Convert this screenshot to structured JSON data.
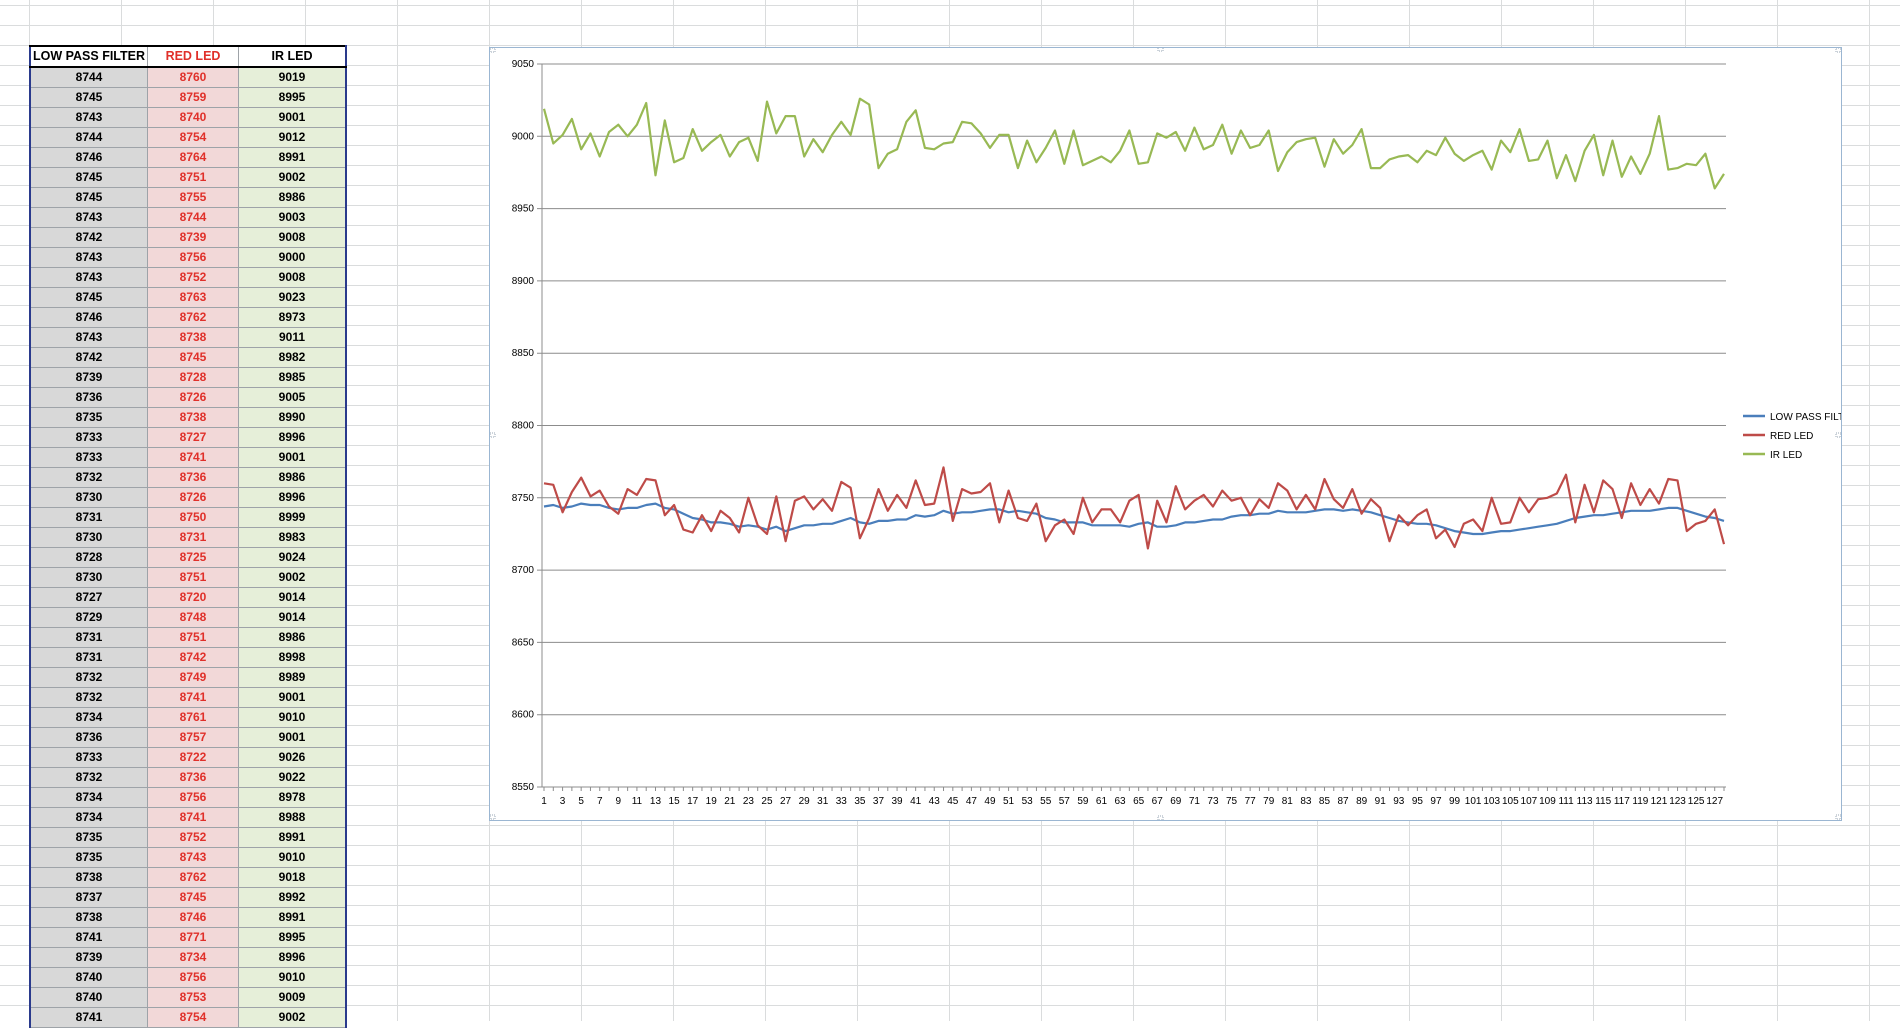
{
  "table": {
    "headers": [
      "LOW PASS FILTER",
      "RED LED",
      "IR LED"
    ],
    "header_colors": [
      "#000000",
      "#e0302a",
      "#000000"
    ],
    "rows": [
      [
        8744,
        8760,
        9019
      ],
      [
        8745,
        8759,
        8995
      ],
      [
        8743,
        8740,
        9001
      ],
      [
        8744,
        8754,
        9012
      ],
      [
        8746,
        8764,
        8991
      ],
      [
        8745,
        8751,
        9002
      ],
      [
        8745,
        8755,
        8986
      ],
      [
        8743,
        8744,
        9003
      ],
      [
        8742,
        8739,
        9008
      ],
      [
        8743,
        8756,
        9000
      ],
      [
        8743,
        8752,
        9008
      ],
      [
        8745,
        8763,
        9023
      ],
      [
        8746,
        8762,
        8973
      ],
      [
        8743,
        8738,
        9011
      ],
      [
        8742,
        8745,
        8982
      ],
      [
        8739,
        8728,
        8985
      ],
      [
        8736,
        8726,
        9005
      ],
      [
        8735,
        8738,
        8990
      ],
      [
        8733,
        8727,
        8996
      ],
      [
        8733,
        8741,
        9001
      ],
      [
        8732,
        8736,
        8986
      ],
      [
        8730,
        8726,
        8996
      ],
      [
        8731,
        8750,
        8999
      ],
      [
        8730,
        8731,
        8983
      ],
      [
        8728,
        8725,
        9024
      ],
      [
        8730,
        8751,
        9002
      ],
      [
        8727,
        8720,
        9014
      ],
      [
        8729,
        8748,
        9014
      ],
      [
        8731,
        8751,
        8986
      ],
      [
        8731,
        8742,
        8998
      ],
      [
        8732,
        8749,
        8989
      ],
      [
        8732,
        8741,
        9001
      ],
      [
        8734,
        8761,
        9010
      ],
      [
        8736,
        8757,
        9001
      ],
      [
        8733,
        8722,
        9026
      ],
      [
        8732,
        8736,
        9022
      ],
      [
        8734,
        8756,
        8978
      ],
      [
        8734,
        8741,
        8988
      ],
      [
        8735,
        8752,
        8991
      ],
      [
        8735,
        8743,
        9010
      ],
      [
        8738,
        8762,
        9018
      ],
      [
        8737,
        8745,
        8992
      ],
      [
        8738,
        8746,
        8991
      ],
      [
        8741,
        8771,
        8995
      ],
      [
        8739,
        8734,
        8996
      ],
      [
        8740,
        8756,
        9010
      ],
      [
        8740,
        8753,
        9009
      ],
      [
        8741,
        8754,
        9002
      ]
    ]
  },
  "colors": {
    "lpf": "#4a7ebb",
    "red": "#be4b48",
    "ir": "#98b954",
    "red_text": "#e0302a"
  },
  "chart_data": {
    "type": "line",
    "title": "",
    "xlabel": "",
    "ylabel": "",
    "ylim": [
      8550,
      9050
    ],
    "yticks": [
      8550,
      8600,
      8650,
      8700,
      8750,
      8800,
      8850,
      8900,
      8950,
      9000,
      9050
    ],
    "xticks": [
      "1",
      "3",
      "5",
      "7",
      "9",
      "11",
      "13",
      "15",
      "17",
      "19",
      "21",
      "23",
      "25",
      "27",
      "29",
      "31",
      "33",
      "35",
      "37",
      "39",
      "41",
      "43",
      "45",
      "47",
      "49",
      "51",
      "53",
      "55",
      "57",
      "59",
      "61",
      "63",
      "65",
      "67",
      "69",
      "71",
      "73",
      "75",
      "77",
      "79",
      "81",
      "83",
      "85",
      "87",
      "89",
      "91",
      "93",
      "95",
      "97",
      "99",
      "101",
      "103",
      "105",
      "107",
      "109",
      "111",
      "113",
      "115",
      "117",
      "119",
      "121",
      "123",
      "125",
      "127"
    ],
    "x_count": 128,
    "grid": "horizontal",
    "legend": "right",
    "series": [
      {
        "name": "LOW PASS FILTER",
        "values": [
          8744,
          8745,
          8743,
          8744,
          8746,
          8745,
          8745,
          8743,
          8742,
          8743,
          8743,
          8745,
          8746,
          8743,
          8742,
          8739,
          8736,
          8735,
          8733,
          8733,
          8732,
          8730,
          8731,
          8730,
          8728,
          8730,
          8727,
          8729,
          8731,
          8731,
          8732,
          8732,
          8734,
          8736,
          8733,
          8732,
          8734,
          8734,
          8735,
          8735,
          8738,
          8737,
          8738,
          8741,
          8739,
          8740,
          8740,
          8741,
          8742,
          8742,
          8740,
          8741,
          8740,
          8739,
          8736,
          8735,
          8733,
          8733,
          8733,
          8731,
          8731,
          8731,
          8731,
          8730,
          8732,
          8733,
          8730,
          8730,
          8731,
          8733,
          8733,
          8734,
          8735,
          8735,
          8737,
          8738,
          8738,
          8739,
          8739,
          8741,
          8740,
          8740,
          8740,
          8741,
          8742,
          8742,
          8741,
          8742,
          8741,
          8740,
          8738,
          8736,
          8734,
          8733,
          8732,
          8732,
          8731,
          8729,
          8727,
          8726,
          8725,
          8725,
          8726,
          8727,
          8727,
          8728,
          8729,
          8730,
          8731,
          8732,
          8734,
          8736,
          8737,
          8738,
          8738,
          8739,
          8740,
          8741,
          8741,
          8741,
          8742,
          8743,
          8743,
          8741,
          8739,
          8737,
          8736,
          8734
        ],
        "color": "#4a7ebb"
      },
      {
        "name": "RED LED",
        "values": [
          8760,
          8759,
          8740,
          8754,
          8764,
          8751,
          8755,
          8744,
          8739,
          8756,
          8752,
          8763,
          8762,
          8738,
          8745,
          8728,
          8726,
          8738,
          8727,
          8741,
          8736,
          8726,
          8750,
          8731,
          8725,
          8751,
          8720,
          8748,
          8751,
          8742,
          8749,
          8741,
          8761,
          8757,
          8722,
          8736,
          8756,
          8741,
          8752,
          8743,
          8762,
          8745,
          8746,
          8771,
          8734,
          8756,
          8753,
          8754,
          8760,
          8733,
          8755,
          8736,
          8734,
          8746,
          8720,
          8731,
          8735,
          8725,
          8750,
          8733,
          8742,
          8742,
          8733,
          8748,
          8752,
          8715,
          8748,
          8733,
          8758,
          8742,
          8748,
          8752,
          8744,
          8755,
          8748,
          8750,
          8738,
          8749,
          8743,
          8760,
          8755,
          8742,
          8752,
          8742,
          8763,
          8749,
          8743,
          8756,
          8739,
          8749,
          8743,
          8720,
          8738,
          8731,
          8738,
          8742,
          8722,
          8728,
          8716,
          8732,
          8735,
          8727,
          8750,
          8732,
          8733,
          8750,
          8740,
          8749,
          8750,
          8753,
          8766,
          8733,
          8759,
          8740,
          8762,
          8756,
          8736,
          8760,
          8745,
          8756,
          8746,
          8763,
          8762,
          8727,
          8732,
          8734,
          8742,
          8718
        ],
        "color": "#be4b48"
      },
      {
        "name": "IR LED",
        "values": [
          9019,
          8995,
          9001,
          9012,
          8991,
          9002,
          8986,
          9003,
          9008,
          9000,
          9008,
          9023,
          8973,
          9011,
          8982,
          8985,
          9005,
          8990,
          8996,
          9001,
          8986,
          8996,
          8999,
          8983,
          9024,
          9002,
          9014,
          9014,
          8986,
          8998,
          8989,
          9001,
          9010,
          9001,
          9026,
          9022,
          8978,
          8988,
          8991,
          9010,
          9018,
          8992,
          8991,
          8995,
          8996,
          9010,
          9009,
          9002,
          8992,
          9001,
          9001,
          8978,
          8997,
          8982,
          8992,
          9004,
          8981,
          9004,
          8980,
          8983,
          8986,
          8982,
          8990,
          9004,
          8981,
          8982,
          9002,
          8999,
          9003,
          8990,
          9006,
          8991,
          8994,
          9008,
          8988,
          9004,
          8992,
          8994,
          9004,
          8976,
          8989,
          8996,
          8998,
          8999,
          8979,
          8998,
          8988,
          8994,
          9005,
          8978,
          8978,
          8984,
          8986,
          8987,
          8982,
          8990,
          8987,
          8999,
          8988,
          8983,
          8987,
          8990,
          8977,
          8997,
          8989,
          9005,
          8983,
          8984,
          8997,
          8971,
          8987,
          8969,
          8990,
          9001,
          8973,
          8997,
          8972,
          8986,
          8974,
          8988,
          9014,
          8977,
          8978,
          8981,
          8980,
          8988,
          8964,
          8974
        ],
        "color": "#98b954"
      }
    ]
  }
}
